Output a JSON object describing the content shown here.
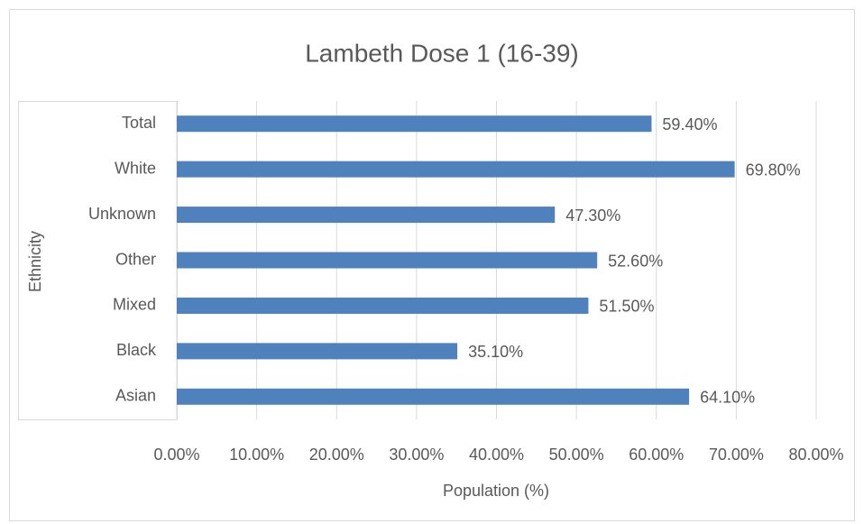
{
  "chart_data": {
    "type": "hbar",
    "title": "Lambeth Dose 1 (16-39)",
    "x_label": "Population (%)",
    "y_label": "Ethnicity",
    "categories": [
      "Total",
      "White",
      "Unknown",
      "Other",
      "Mixed",
      "Black",
      "Asian"
    ],
    "values": [
      59.4,
      69.8,
      47.3,
      52.6,
      51.5,
      35.1,
      64.1
    ],
    "value_labels": [
      "59.40%",
      "69.80%",
      "47.30%",
      "52.60%",
      "51.50%",
      "35.10%",
      "64.10%"
    ],
    "color": "#4f81bd",
    "xlim": [
      0,
      80
    ],
    "xticks": [
      {
        "value": 0,
        "label": "0.00%"
      },
      {
        "value": 10,
        "label": "10.00%"
      },
      {
        "value": 20,
        "label": "20.00%"
      },
      {
        "value": 30,
        "label": "30.00%"
      },
      {
        "value": 40,
        "label": "40.00%"
      },
      {
        "value": 50,
        "label": "50.00%"
      },
      {
        "value": 60,
        "label": "60.00%"
      },
      {
        "value": 70,
        "label": "70.00%"
      },
      {
        "value": 80,
        "label": "80.00%"
      }
    ],
    "grid": true
  }
}
